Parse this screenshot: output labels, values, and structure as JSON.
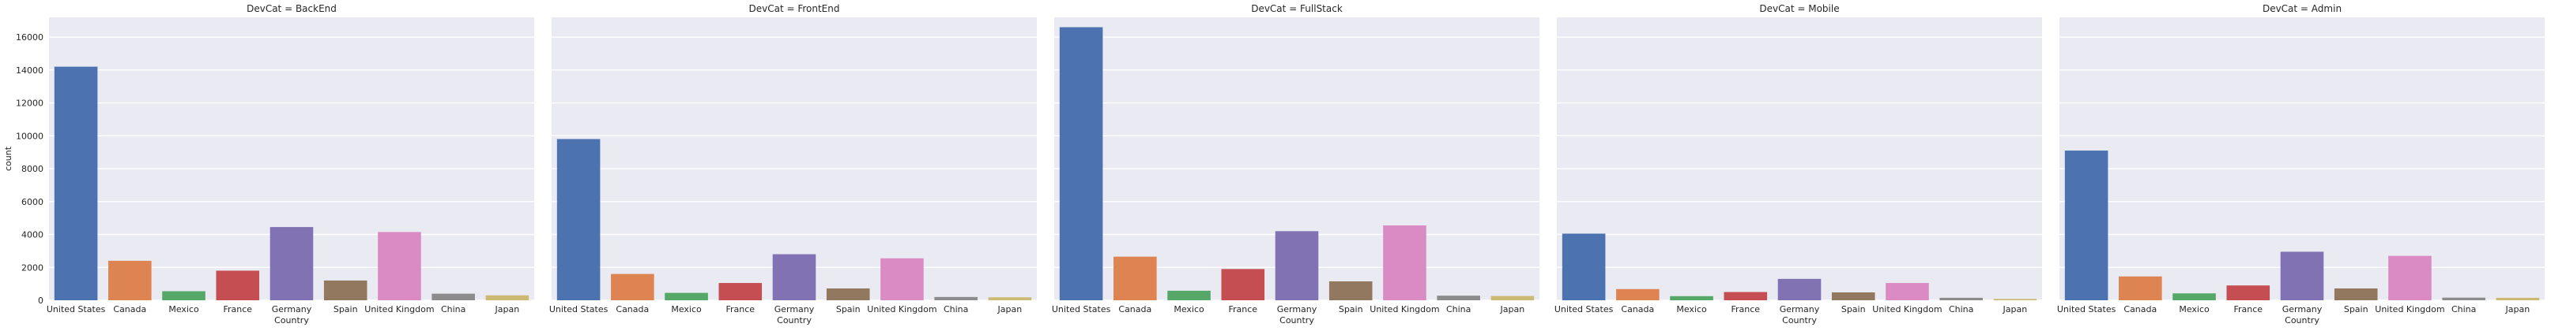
{
  "chart_data": {
    "type": "bar",
    "layout": "facet-grid",
    "facet_variable": "DevCat",
    "facet_titles": [
      "DevCat = BackEnd",
      "DevCat = FrontEnd",
      "DevCat = FullStack",
      "DevCat = Mobile",
      "DevCat = Admin"
    ],
    "categories": [
      "United States",
      "Canada",
      "Mexico",
      "France",
      "Germany",
      "Spain",
      "United Kingdom",
      "China",
      "Japan"
    ],
    "xlabel": "Country",
    "ylabel": "count",
    "ylim": [
      0,
      17200
    ],
    "yticks": [
      0,
      2000,
      4000,
      6000,
      8000,
      10000,
      12000,
      14000,
      16000
    ],
    "grid": true,
    "colors": [
      "#4c72b0",
      "#dd8452",
      "#55a868",
      "#c44e52",
      "#8172b3",
      "#937860",
      "#da8bc3",
      "#8c8c8c",
      "#ccb974"
    ],
    "panels": [
      {
        "title": "DevCat = BackEnd",
        "values": [
          14200,
          2400,
          550,
          1800,
          4450,
          1200,
          4150,
          400,
          300
        ]
      },
      {
        "title": "DevCat = FrontEnd",
        "values": [
          9800,
          1600,
          450,
          1050,
          2800,
          720,
          2550,
          200,
          180
        ]
      },
      {
        "title": "DevCat = FullStack",
        "values": [
          16600,
          2650,
          580,
          1900,
          4200,
          1150,
          4550,
          280,
          260
        ]
      },
      {
        "title": "DevCat = Mobile",
        "values": [
          4050,
          680,
          250,
          500,
          1300,
          480,
          1050,
          150,
          80
        ]
      },
      {
        "title": "DevCat = Admin",
        "values": [
          9100,
          1450,
          420,
          900,
          2950,
          720,
          2700,
          160,
          150
        ]
      }
    ]
  }
}
